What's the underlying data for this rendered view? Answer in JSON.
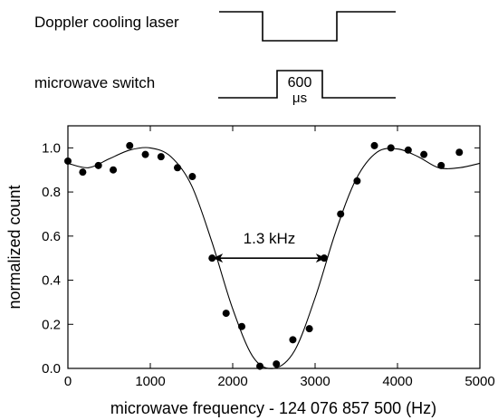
{
  "timing": {
    "doppler_label": "Doppler cooling laser",
    "microwave_label": "microwave switch",
    "pulse_value": "600",
    "pulse_unit": "μs"
  },
  "chart_data": {
    "type": "scatter",
    "xlabel": "microwave frequency - 124 076 857 500 (Hz)",
    "ylabel": "normalized count",
    "xlim": [
      0,
      5000
    ],
    "ylim": [
      0,
      1.1
    ],
    "xticks": [
      0,
      1000,
      2000,
      3000,
      4000,
      5000
    ],
    "yticks": [
      "0.0",
      "0.2",
      "0.4",
      "0.6",
      "0.8",
      "1.0"
    ],
    "points": {
      "x": [
        0,
        180,
        370,
        550,
        750,
        940,
        1130,
        1330,
        1510,
        1750,
        1920,
        2110,
        2330,
        2530,
        2730,
        2930,
        3110,
        3310,
        3510,
        3720,
        3920,
        4130,
        4320,
        4530,
        4750
      ],
      "y": [
        0.94,
        0.89,
        0.92,
        0.9,
        1.01,
        0.97,
        0.96,
        0.91,
        0.87,
        0.5,
        0.25,
        0.19,
        0.01,
        0.02,
        0.13,
        0.18,
        0.5,
        0.7,
        0.85,
        1.01,
        1.0,
        0.99,
        0.97,
        0.92,
        0.98
      ]
    },
    "fit": {
      "x": [
        0,
        250,
        500,
        750,
        1000,
        1250,
        1500,
        1750,
        2000,
        2250,
        2500,
        2750,
        3000,
        3250,
        3500,
        3750,
        4000,
        4250,
        4500,
        4750,
        5000
      ],
      "y": [
        0.93,
        0.91,
        0.95,
        0.99,
        1.0,
        0.96,
        0.83,
        0.57,
        0.27,
        0.05,
        0.0,
        0.08,
        0.32,
        0.62,
        0.86,
        0.98,
        0.995,
        0.96,
        0.91,
        0.91,
        0.93
      ]
    },
    "annotation": {
      "text": "1.3 kHz",
      "x1": 1760,
      "x2": 3130,
      "y": 0.5
    }
  }
}
